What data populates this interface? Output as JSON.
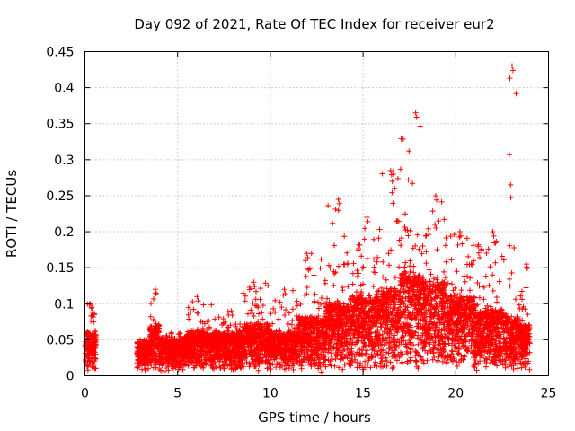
{
  "chart_data": {
    "type": "scatter",
    "title": "Day 092 of 2021, Rate Of TEC Index for receiver eur2",
    "xlabel": "GPS time / hours",
    "ylabel": "ROTI / TECUs",
    "xlim": [
      0,
      25
    ],
    "ylim": [
      0,
      0.45
    ],
    "xticks": [
      0,
      5,
      10,
      15,
      20,
      25
    ],
    "xtick_labels": [
      "0",
      "5",
      "10",
      "15",
      "20",
      "25"
    ],
    "yticks": [
      0,
      0.05,
      0.1,
      0.15,
      0.2,
      0.25,
      0.3,
      0.35,
      0.4,
      0.45
    ],
    "ytick_labels": [
      "0",
      "0.05",
      "0.1",
      "0.15",
      "0.2",
      "0.25",
      "0.3",
      "0.35",
      "0.4",
      "0.45"
    ],
    "grid": true,
    "marker": "+",
    "color": "#ff0000",
    "series": [
      {
        "name": "ROTI",
        "note": "dense scatter; approximate envelope of points by hour segment",
        "segments": [
          {
            "x_start": 0.0,
            "x_end": 0.6,
            "base_max": 0.05,
            "peak": 0.1
          },
          {
            "x_start": 2.8,
            "x_end": 3.5,
            "base_max": 0.035,
            "peak": 0.05
          },
          {
            "x_start": 3.5,
            "x_end": 4.0,
            "base_max": 0.06,
            "peak": 0.12
          },
          {
            "x_start": 4.0,
            "x_end": 5.5,
            "base_max": 0.04,
            "peak": 0.06
          },
          {
            "x_start": 5.5,
            "x_end": 7.0,
            "base_max": 0.05,
            "peak": 0.11
          },
          {
            "x_start": 7.0,
            "x_end": 8.5,
            "base_max": 0.05,
            "peak": 0.09
          },
          {
            "x_start": 8.5,
            "x_end": 10.0,
            "base_max": 0.06,
            "peak": 0.13
          },
          {
            "x_start": 10.0,
            "x_end": 11.5,
            "base_max": 0.05,
            "peak": 0.12
          },
          {
            "x_start": 11.5,
            "x_end": 13.0,
            "base_max": 0.07,
            "peak": 0.17
          },
          {
            "x_start": 13.0,
            "x_end": 14.5,
            "base_max": 0.09,
            "peak": 0.245
          },
          {
            "x_start": 14.5,
            "x_end": 16.0,
            "base_max": 0.1,
            "peak": 0.22
          },
          {
            "x_start": 16.0,
            "x_end": 17.0,
            "base_max": 0.11,
            "peak": 0.285
          },
          {
            "x_start": 17.0,
            "x_end": 18.2,
            "base_max": 0.13,
            "peak": 0.365
          },
          {
            "x_start": 18.2,
            "x_end": 19.5,
            "base_max": 0.12,
            "peak": 0.25
          },
          {
            "x_start": 19.5,
            "x_end": 21.0,
            "base_max": 0.1,
            "peak": 0.2
          },
          {
            "x_start": 21.0,
            "x_end": 22.8,
            "base_max": 0.08,
            "peak": 0.2
          },
          {
            "x_start": 22.8,
            "x_end": 23.4,
            "base_max": 0.07,
            "peak": 0.43
          },
          {
            "x_start": 23.4,
            "x_end": 24.0,
            "base_max": 0.06,
            "peak": 0.155
          }
        ]
      }
    ]
  }
}
